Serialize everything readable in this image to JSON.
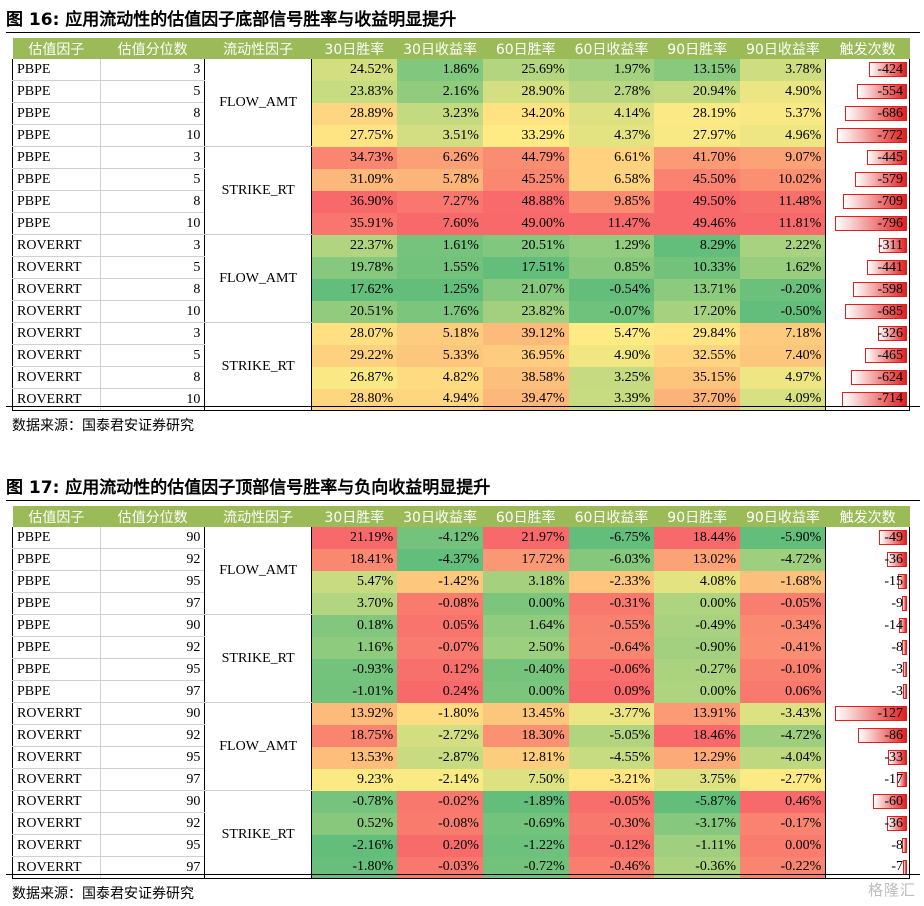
{
  "table16": {
    "title": "图 16:  应用流动性的估值因子底部信号胜率与收益明显提升",
    "headers": [
      "估值因子",
      "估值分位数",
      "流动性因子",
      "30日胜率",
      "30日收益率",
      "60日胜率",
      "60日收益率",
      "90日胜率",
      "90日收益率",
      "触发次数"
    ],
    "groups": [
      {
        "liquidity": "FLOW_AMT",
        "rows": [
          {
            "factor": "PBPE",
            "pct": "3",
            "v": [
              "24.52%",
              "1.86%",
              "25.69%",
              "1.97%",
              "13.15%",
              "3.78%"
            ],
            "count": "-424",
            "countValue": -424
          },
          {
            "factor": "PBPE",
            "pct": "5",
            "v": [
              "23.83%",
              "2.16%",
              "28.90%",
              "2.78%",
              "20.94%",
              "4.90%"
            ],
            "count": "-554",
            "countValue": -554
          },
          {
            "factor": "PBPE",
            "pct": "8",
            "v": [
              "28.89%",
              "3.23%",
              "34.20%",
              "4.14%",
              "28.19%",
              "5.37%"
            ],
            "count": "-686",
            "countValue": -686
          },
          {
            "factor": "PBPE",
            "pct": "10",
            "v": [
              "27.75%",
              "3.51%",
              "33.29%",
              "4.37%",
              "27.97%",
              "4.96%"
            ],
            "count": "-772",
            "countValue": -772
          }
        ]
      },
      {
        "liquidity": "STRIKE_RT",
        "rows": [
          {
            "factor": "PBPE",
            "pct": "3",
            "v": [
              "34.73%",
              "6.26%",
              "44.79%",
              "6.61%",
              "41.70%",
              "9.07%"
            ],
            "count": "-445",
            "countValue": -445
          },
          {
            "factor": "PBPE",
            "pct": "5",
            "v": [
              "31.09%",
              "5.78%",
              "45.25%",
              "6.58%",
              "45.50%",
              "10.02%"
            ],
            "count": "-579",
            "countValue": -579
          },
          {
            "factor": "PBPE",
            "pct": "8",
            "v": [
              "36.90%",
              "7.27%",
              "48.88%",
              "9.85%",
              "49.50%",
              "11.48%"
            ],
            "count": "-709",
            "countValue": -709
          },
          {
            "factor": "PBPE",
            "pct": "10",
            "v": [
              "35.91%",
              "7.60%",
              "49.00%",
              "11.47%",
              "49.46%",
              "11.81%"
            ],
            "count": "-796",
            "countValue": -796
          }
        ]
      },
      {
        "liquidity": "FLOW_AMT",
        "rows": [
          {
            "factor": "ROVERRT",
            "pct": "3",
            "v": [
              "22.37%",
              "1.61%",
              "20.51%",
              "1.29%",
              "8.29%",
              "2.22%"
            ],
            "count": "-311",
            "countValue": -311
          },
          {
            "factor": "ROVERRT",
            "pct": "5",
            "v": [
              "19.78%",
              "1.55%",
              "17.51%",
              "0.85%",
              "10.33%",
              "1.62%"
            ],
            "count": "-441",
            "countValue": -441
          },
          {
            "factor": "ROVERRT",
            "pct": "8",
            "v": [
              "17.62%",
              "1.25%",
              "21.07%",
              "-0.54%",
              "13.71%",
              "-0.20%"
            ],
            "count": "-598",
            "countValue": -598
          },
          {
            "factor": "ROVERRT",
            "pct": "10",
            "v": [
              "20.51%",
              "1.76%",
              "23.82%",
              "-0.07%",
              "17.20%",
              "-0.50%"
            ],
            "count": "-685",
            "countValue": -685
          }
        ]
      },
      {
        "liquidity": "STRIKE_RT",
        "rows": [
          {
            "factor": "ROVERRT",
            "pct": "3",
            "v": [
              "28.07%",
              "5.18%",
              "39.12%",
              "5.47%",
              "29.84%",
              "7.18%"
            ],
            "count": "-326",
            "countValue": -326
          },
          {
            "factor": "ROVERRT",
            "pct": "5",
            "v": [
              "29.22%",
              "5.33%",
              "36.95%",
              "4.90%",
              "32.55%",
              "7.40%"
            ],
            "count": "-465",
            "countValue": -465
          },
          {
            "factor": "ROVERRT",
            "pct": "8",
            "v": [
              "26.87%",
              "4.82%",
              "38.58%",
              "3.25%",
              "35.15%",
              "4.97%"
            ],
            "count": "-624",
            "countValue": -624
          },
          {
            "factor": "ROVERRT",
            "pct": "10",
            "v": [
              "28.80%",
              "4.94%",
              "39.47%",
              "3.39%",
              "37.70%",
              "4.09%"
            ],
            "count": "-714",
            "countValue": -714
          }
        ]
      }
    ],
    "source": "数据来源：国泰君安证券研究"
  },
  "table17": {
    "title": "图 17:  应用流动性的估值因子顶部信号胜率与负向收益明显提升",
    "headers": [
      "估值因子",
      "估值分位数",
      "流动性因子",
      "30日胜率",
      "30日收益率",
      "60日胜率",
      "60日收益率",
      "90日胜率",
      "90日收益率",
      "触发次数"
    ],
    "groups": [
      {
        "liquidity": "FLOW_AMT",
        "rows": [
          {
            "factor": "PBPE",
            "pct": "90",
            "v": [
              "21.19%",
              "-4.12%",
              "21.97%",
              "-6.75%",
              "18.44%",
              "-5.90%"
            ],
            "count": "-49",
            "countValue": -49
          },
          {
            "factor": "PBPE",
            "pct": "92",
            "v": [
              "18.41%",
              "-4.37%",
              "17.72%",
              "-6.03%",
              "13.02%",
              "-4.72%"
            ],
            "count": "-36",
            "countValue": -36
          },
          {
            "factor": "PBPE",
            "pct": "95",
            "v": [
              "5.47%",
              "-1.42%",
              "3.18%",
              "-2.33%",
              "4.08%",
              "-1.68%"
            ],
            "count": "-15",
            "countValue": -15
          },
          {
            "factor": "PBPE",
            "pct": "97",
            "v": [
              "3.70%",
              "-0.08%",
              "0.00%",
              "-0.31%",
              "0.00%",
              "-0.05%"
            ],
            "count": "-9",
            "countValue": -9
          }
        ]
      },
      {
        "liquidity": "STRIKE_RT",
        "rows": [
          {
            "factor": "PBPE",
            "pct": "90",
            "v": [
              "0.18%",
              "0.05%",
              "1.64%",
              "-0.55%",
              "-0.49%",
              "-0.34%"
            ],
            "count": "-14",
            "countValue": -14
          },
          {
            "factor": "PBPE",
            "pct": "92",
            "v": [
              "1.16%",
              "-0.07%",
              "2.50%",
              "-0.64%",
              "-0.90%",
              "-0.41%"
            ],
            "count": "-8",
            "countValue": -8
          },
          {
            "factor": "PBPE",
            "pct": "95",
            "v": [
              "-0.93%",
              "0.12%",
              "-0.40%",
              "-0.06%",
              "-0.27%",
              "-0.10%"
            ],
            "count": "-3",
            "countValue": -3
          },
          {
            "factor": "PBPE",
            "pct": "97",
            "v": [
              "-1.01%",
              "0.24%",
              "0.00%",
              "0.09%",
              "0.00%",
              "0.06%"
            ],
            "count": "-3",
            "countValue": -3
          }
        ]
      },
      {
        "liquidity": "FLOW_AMT",
        "rows": [
          {
            "factor": "ROVERRT",
            "pct": "90",
            "v": [
              "13.92%",
              "-1.80%",
              "13.45%",
              "-3.77%",
              "13.91%",
              "-3.43%"
            ],
            "count": "-127",
            "countValue": -127
          },
          {
            "factor": "ROVERRT",
            "pct": "92",
            "v": [
              "18.75%",
              "-2.72%",
              "18.30%",
              "-5.05%",
              "18.46%",
              "-4.72%"
            ],
            "count": "-86",
            "countValue": -86
          },
          {
            "factor": "ROVERRT",
            "pct": "95",
            "v": [
              "13.53%",
              "-2.87%",
              "12.81%",
              "-4.55%",
              "12.29%",
              "-4.04%"
            ],
            "count": "-33",
            "countValue": -33
          },
          {
            "factor": "ROVERRT",
            "pct": "97",
            "v": [
              "9.23%",
              "-2.14%",
              "7.50%",
              "-3.21%",
              "3.75%",
              "-2.77%"
            ],
            "count": "-17",
            "countValue": -17
          }
        ]
      },
      {
        "liquidity": "STRIKE_RT",
        "rows": [
          {
            "factor": "ROVERRT",
            "pct": "90",
            "v": [
              "-0.78%",
              "-0.02%",
              "-1.89%",
              "-0.05%",
              "-5.87%",
              "0.46%"
            ],
            "count": "-60",
            "countValue": -60
          },
          {
            "factor": "ROVERRT",
            "pct": "92",
            "v": [
              "0.52%",
              "-0.08%",
              "-0.69%",
              "-0.30%",
              "-3.17%",
              "-0.17%"
            ],
            "count": "-36",
            "countValue": -36
          },
          {
            "factor": "ROVERRT",
            "pct": "95",
            "v": [
              "-2.16%",
              "0.20%",
              "-1.22%",
              "-0.12%",
              "-1.11%",
              "0.00%"
            ],
            "count": "-8",
            "countValue": -8
          },
          {
            "factor": "ROVERRT",
            "pct": "97",
            "v": [
              "-1.80%",
              "-0.03%",
              "-0.72%",
              "-0.46%",
              "-0.36%",
              "-0.22%"
            ],
            "count": "-7",
            "countValue": -7
          }
        ]
      }
    ],
    "source": "数据来源：国泰君安证券研究"
  },
  "colors": {
    "header_bg": "#9bbb59",
    "header_text": "#ffffff",
    "low": "#63be7b",
    "mid": "#ffeb84",
    "high": "#f8696b",
    "bar": "#e02020"
  },
  "watermark": "格隆汇"
}
